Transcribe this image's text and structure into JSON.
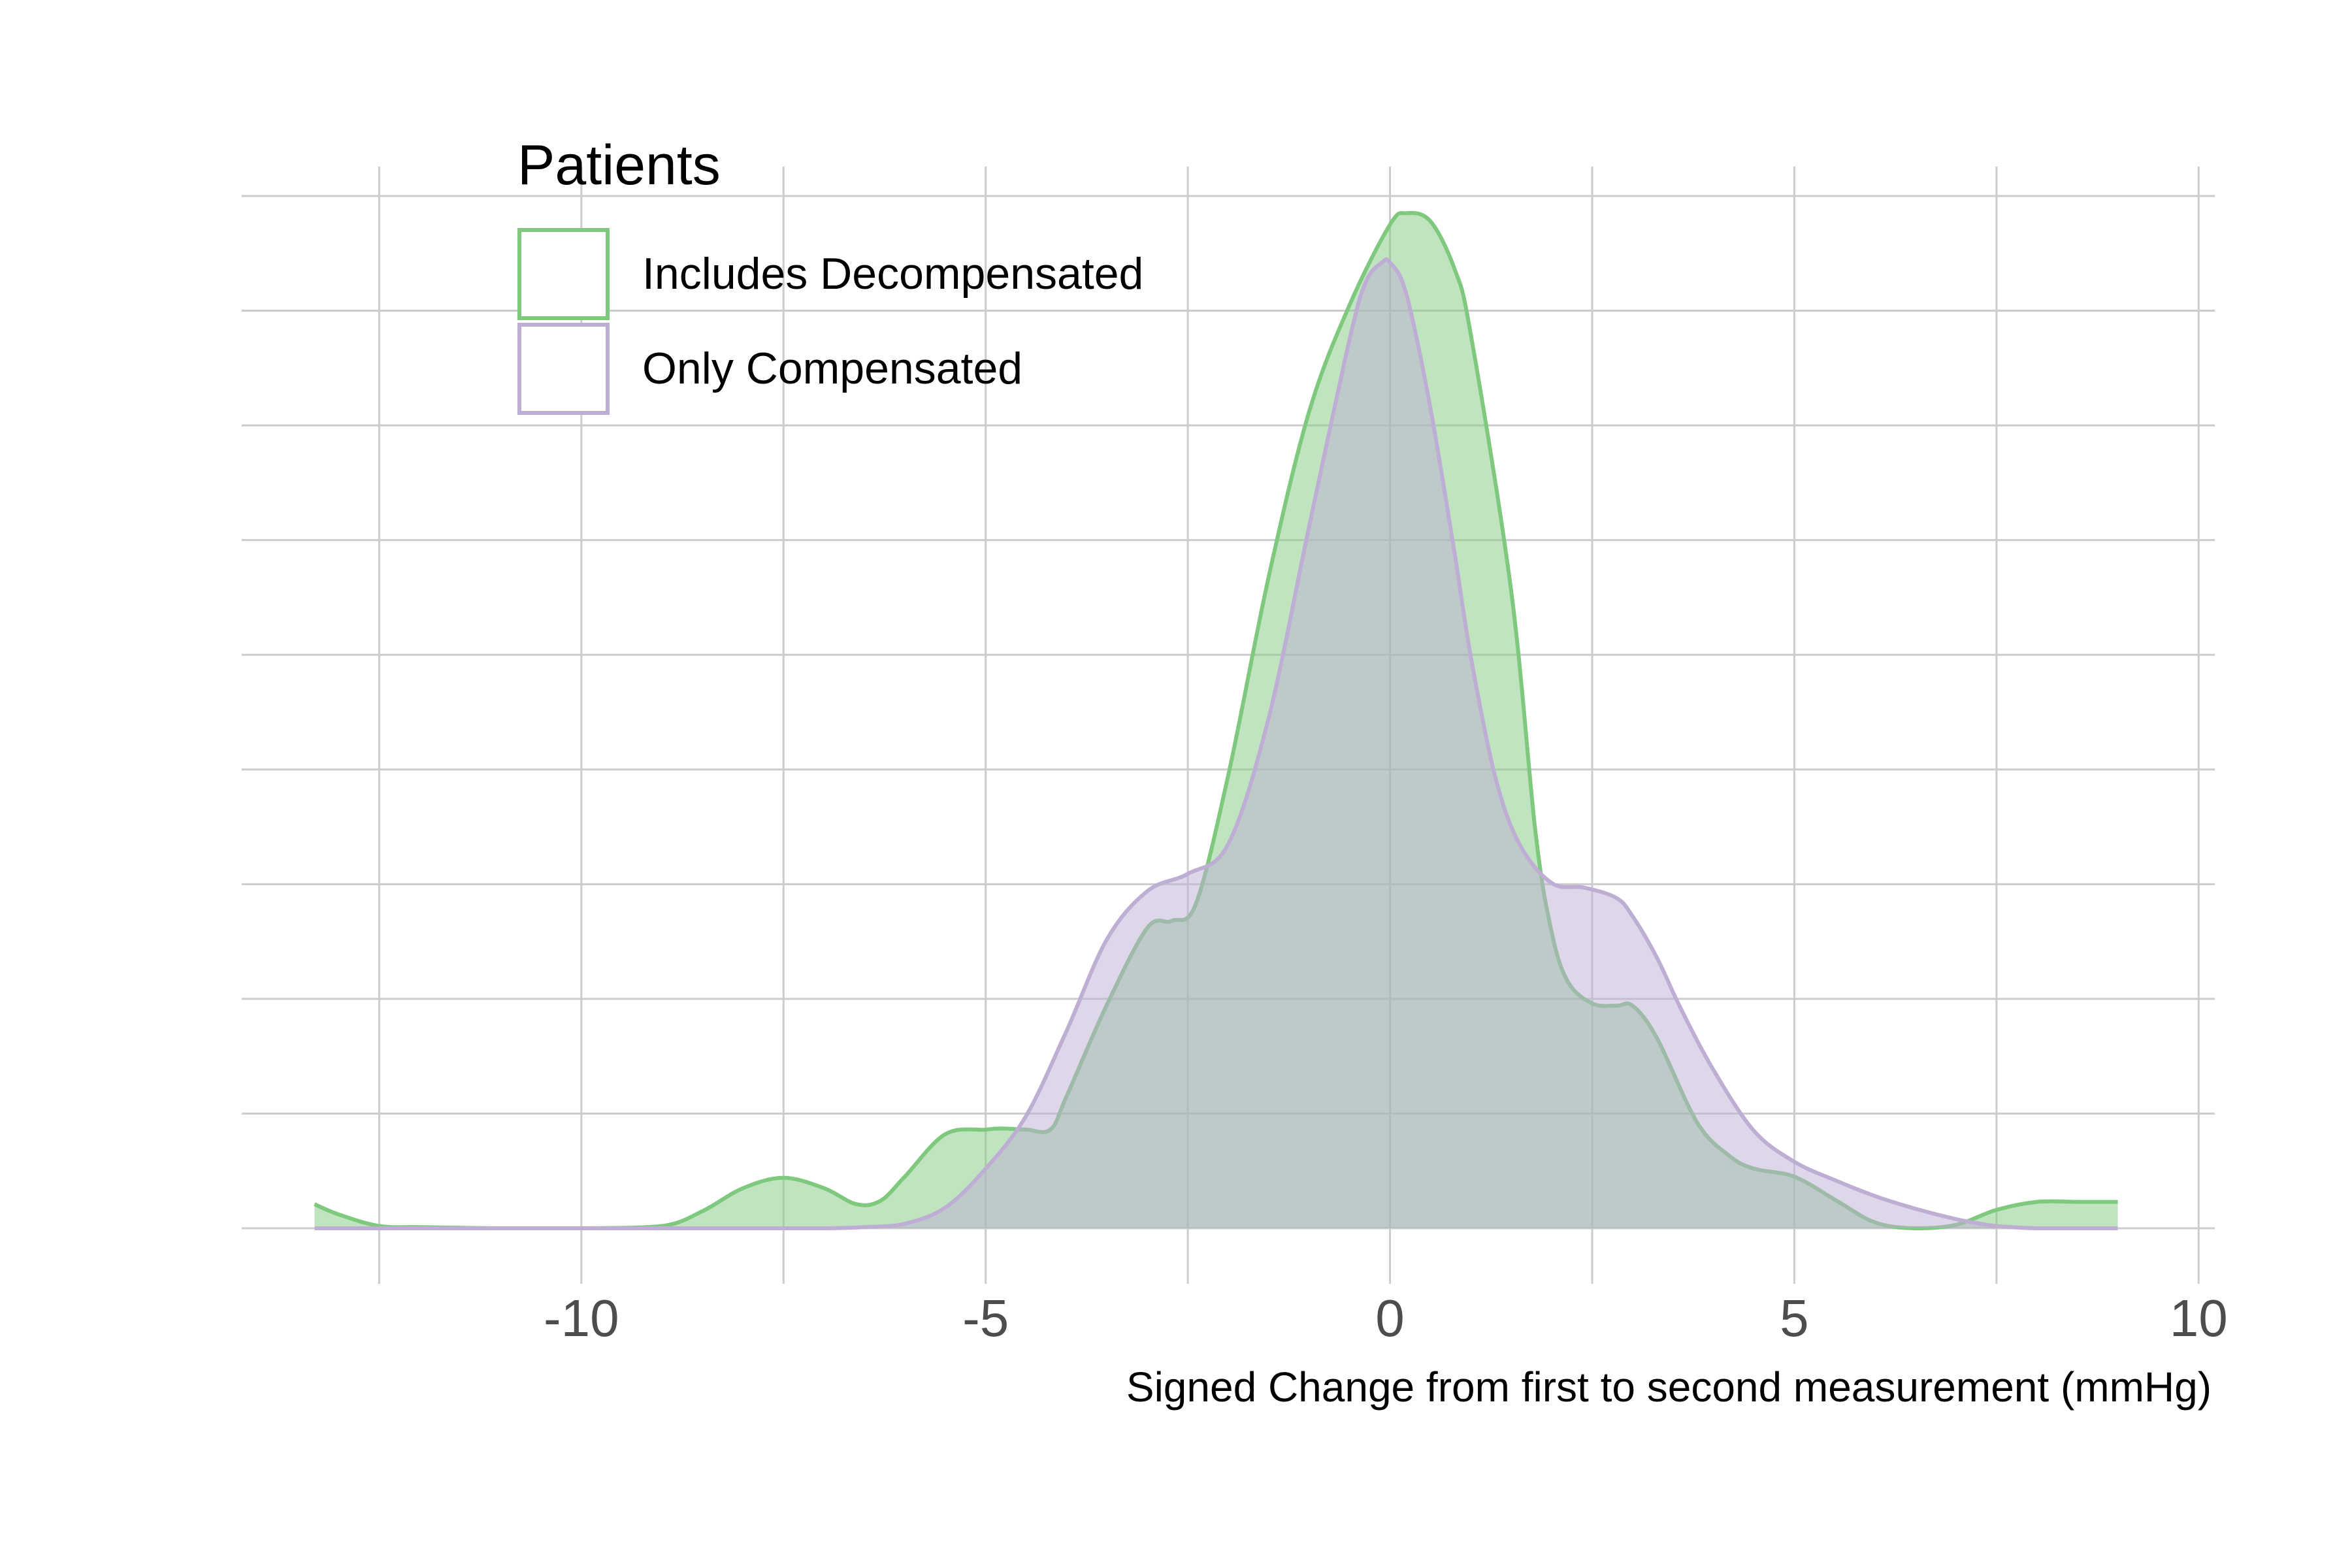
{
  "chart_data": {
    "type": "area",
    "xlabel": "Signed Change from first to second measurement (mmHg)",
    "ylabel": "",
    "xlim": [
      -14.2,
      10.2
    ],
    "ylim": [
      0,
      0.09
    ],
    "x_ticks": [
      -10,
      -5,
      0,
      5,
      10
    ],
    "grid": true,
    "legend": {
      "title": "Patients",
      "position": "top-left"
    },
    "series": [
      {
        "name": "Includes Decompensated",
        "color": "#7fc97f",
        "x": [
          -13.3,
          -13.0,
          -12.5,
          -12.0,
          -11.0,
          -10.0,
          -9.0,
          -8.5,
          -8.0,
          -7.5,
          -7.0,
          -6.6,
          -6.3,
          -6.0,
          -5.5,
          -5.0,
          -4.8,
          -4.5,
          -4.2,
          -4.0,
          -3.5,
          -3.0,
          -2.7,
          -2.4,
          -2.0,
          -1.5,
          -1.0,
          -0.5,
          0.0,
          0.2,
          0.5,
          0.8,
          1.0,
          1.5,
          1.8,
          2.0,
          2.2,
          2.5,
          2.8,
          3.0,
          3.3,
          3.8,
          4.2,
          4.5,
          5.0,
          5.5,
          6.0,
          6.5,
          7.0,
          7.5,
          8.0,
          8.5,
          9.0
        ],
        "values": [
          0.0021,
          0.0012,
          0.0002,
          0.0001,
          0.0,
          0.0,
          0.0002,
          0.0015,
          0.0035,
          0.0044,
          0.0035,
          0.0021,
          0.0024,
          0.0045,
          0.0082,
          0.0086,
          0.0087,
          0.0086,
          0.0086,
          0.0115,
          0.0195,
          0.0262,
          0.0268,
          0.0283,
          0.0395,
          0.0568,
          0.0712,
          0.0805,
          0.0875,
          0.0885,
          0.0878,
          0.0836,
          0.0779,
          0.0555,
          0.0345,
          0.0258,
          0.0215,
          0.0196,
          0.0194,
          0.0194,
          0.0166,
          0.0092,
          0.0063,
          0.0052,
          0.0045,
          0.0025,
          0.0005,
          0.0,
          0.0003,
          0.0016,
          0.0023,
          0.0023,
          0.0023
        ]
      },
      {
        "name": "Only Compensated",
        "color": "#beaed4",
        "x": [
          -13.3,
          -12.0,
          -11.0,
          -10.0,
          -9.0,
          -8.0,
          -7.0,
          -6.5,
          -6.0,
          -5.5,
          -5.0,
          -4.5,
          -4.0,
          -3.5,
          -3.0,
          -2.5,
          -2.0,
          -1.5,
          -1.0,
          -0.5,
          -0.3,
          -0.1,
          0.0,
          0.2,
          0.5,
          0.8,
          1.0,
          1.3,
          1.6,
          2.0,
          2.4,
          2.8,
          3.0,
          3.3,
          3.6,
          4.0,
          4.5,
          5.0,
          5.5,
          6.0,
          6.5,
          7.0,
          7.3,
          7.5,
          8.0,
          9.0
        ],
        "values": [
          0.0,
          0.0,
          0.0,
          0.0,
          0.0,
          0.0,
          0.0,
          0.0001,
          0.0004,
          0.0018,
          0.0052,
          0.0098,
          0.0172,
          0.0252,
          0.0294,
          0.0309,
          0.0335,
          0.0445,
          0.0612,
          0.0775,
          0.0825,
          0.0842,
          0.0842,
          0.0815,
          0.0715,
          0.0588,
          0.0498,
          0.0394,
          0.0335,
          0.0301,
          0.0297,
          0.0288,
          0.0272,
          0.0236,
          0.0191,
          0.0138,
          0.0085,
          0.0058,
          0.0042,
          0.0028,
          0.0017,
          0.0008,
          0.0004,
          0.0002,
          0.0,
          0.0
        ]
      }
    ]
  }
}
